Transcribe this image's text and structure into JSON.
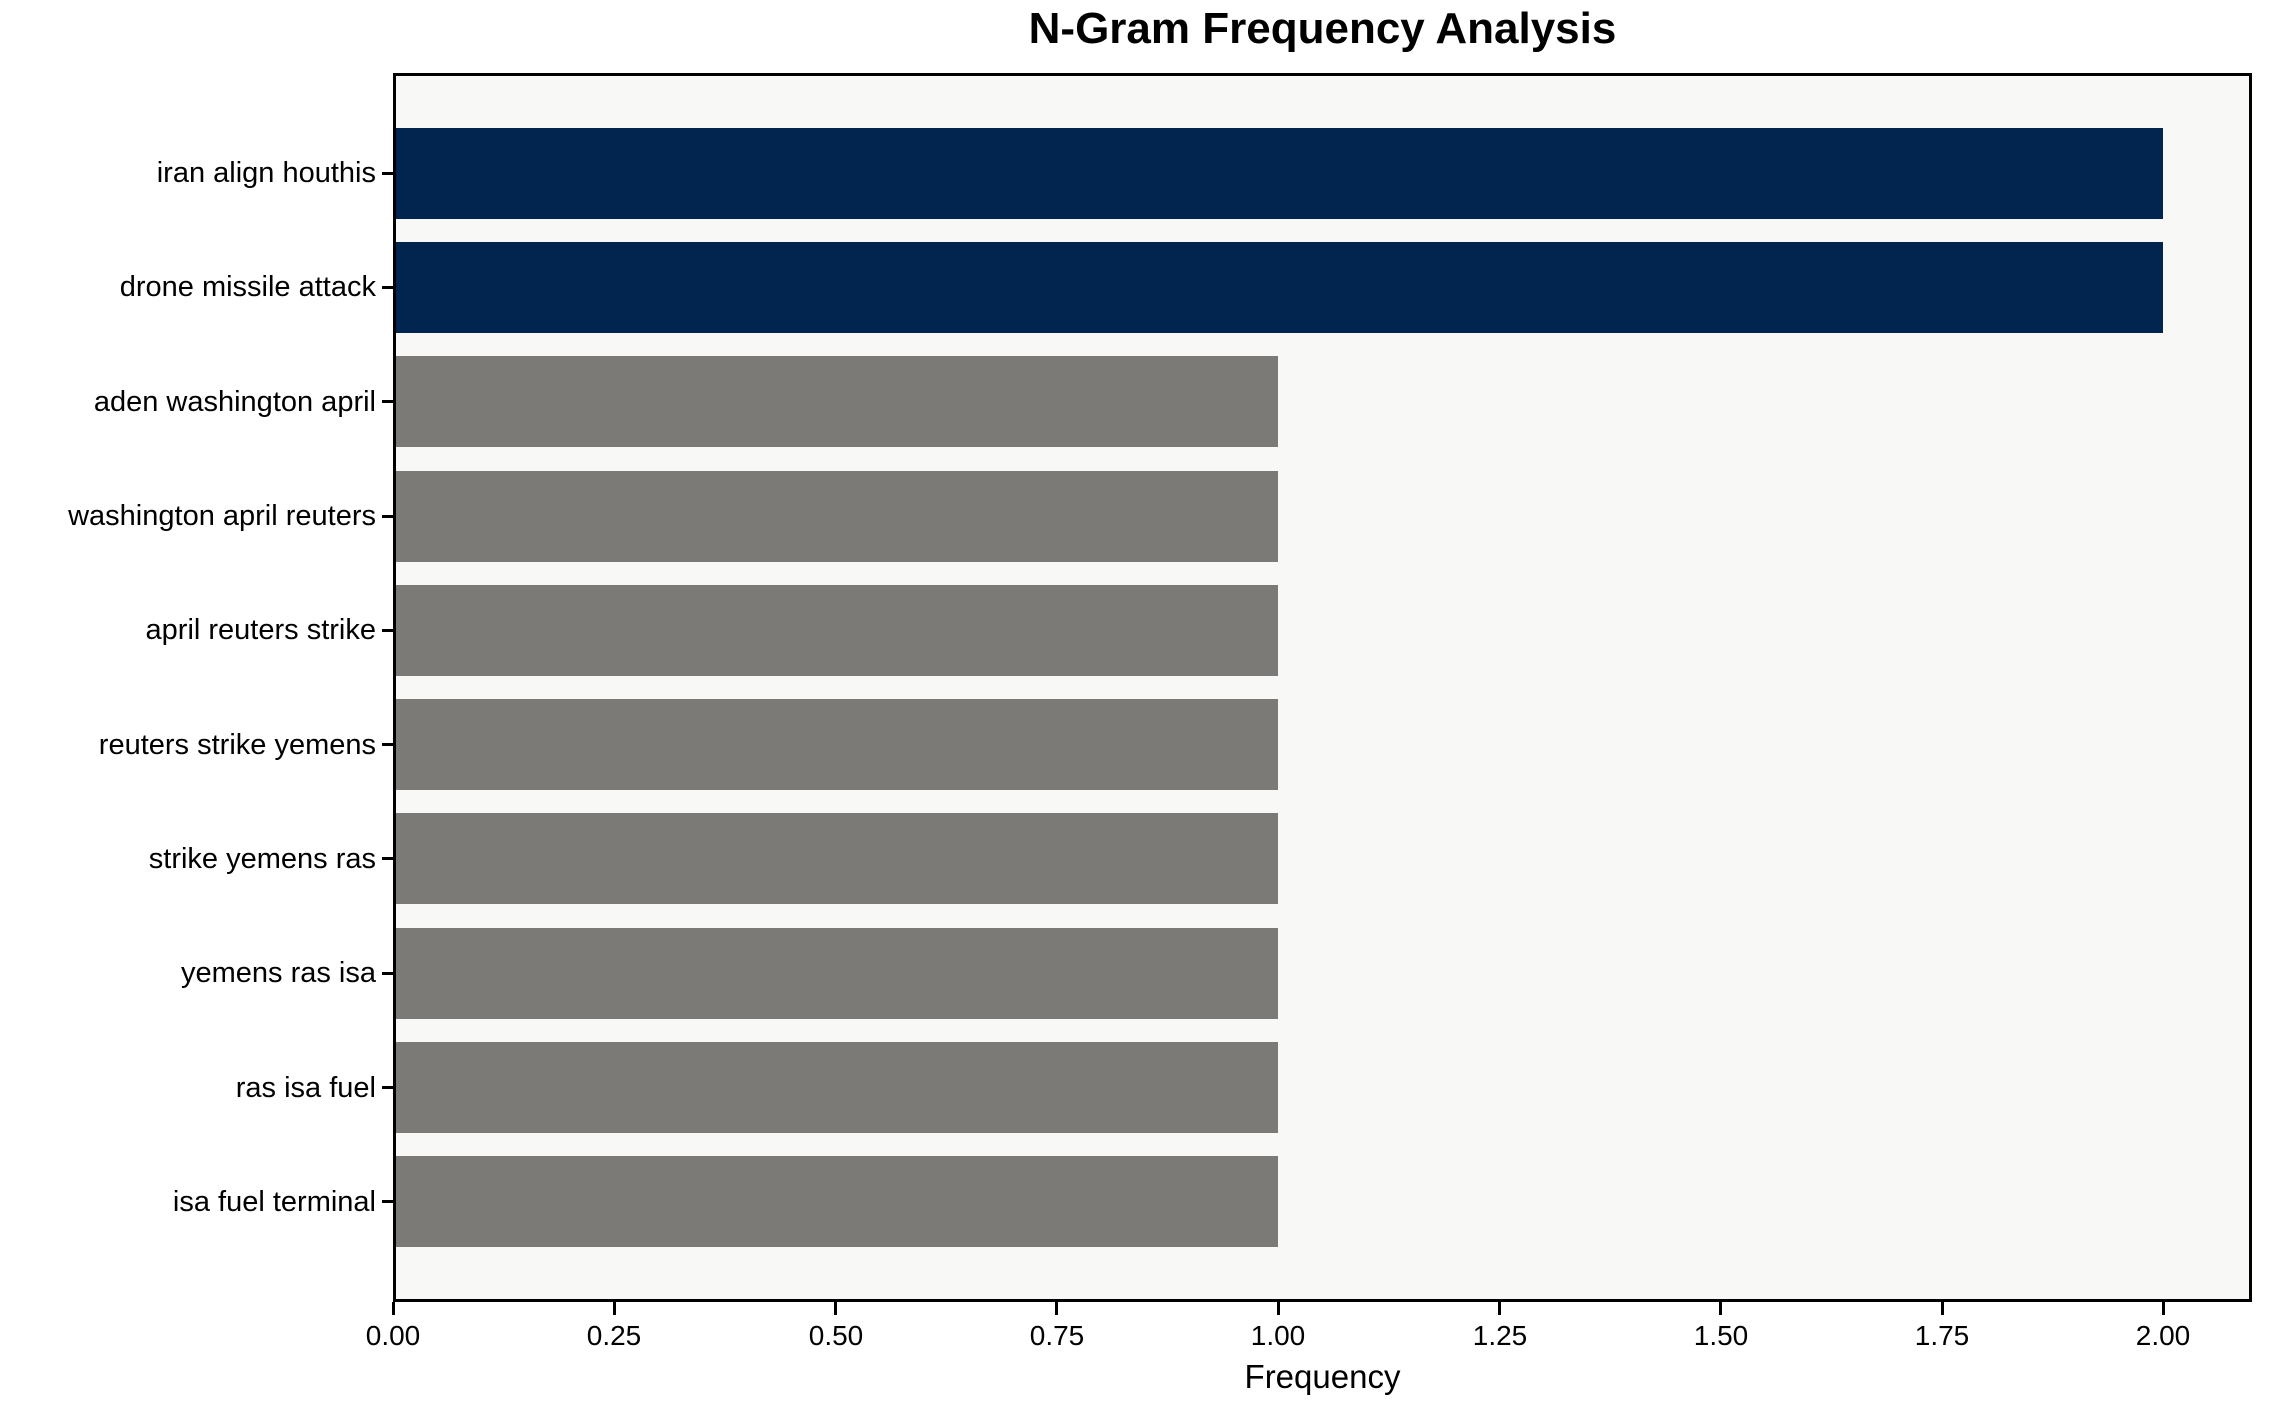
{
  "chart_data": {
    "type": "bar",
    "orientation": "horizontal",
    "title": "N-Gram Frequency Analysis",
    "xlabel": "Frequency",
    "ylabel": "",
    "categories": [
      "iran align houthis",
      "drone missile attack",
      "aden washington april",
      "washington april reuters",
      "april reuters strike",
      "reuters strike yemens",
      "strike yemens ras",
      "yemens ras isa",
      "ras isa fuel",
      "isa fuel terminal"
    ],
    "values": [
      2,
      2,
      1,
      1,
      1,
      1,
      1,
      1,
      1,
      1
    ],
    "bar_colors": [
      "#02254f",
      "#02254f",
      "#7b7a77",
      "#7b7a77",
      "#7b7a77",
      "#7b7a77",
      "#7b7a77",
      "#7b7a77",
      "#7b7a77",
      "#7b7a77"
    ],
    "xlim": [
      0,
      2.1
    ],
    "xticks": [
      0,
      0.25,
      0.5,
      0.75,
      1.0,
      1.25,
      1.5,
      1.75,
      2.0
    ],
    "xtick_labels": [
      "0.00",
      "0.25",
      "0.50",
      "0.75",
      "1.00",
      "1.25",
      "1.50",
      "1.75",
      "2.00"
    ],
    "grid": false,
    "legend": null,
    "colors": {
      "highlight": "#02254f",
      "default_bar": "#7b7a77",
      "plot_background": "#f8f8f7",
      "figure_background": "#ffffff",
      "axis": "#000000",
      "text": "#000000"
    }
  }
}
